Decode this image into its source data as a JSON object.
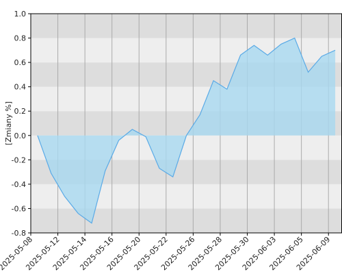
{
  "chart_data": {
    "type": "area",
    "y_label": "[Zmiany %]",
    "x": [
      0.5,
      1.5,
      2.5,
      3.5,
      4.5,
      5.5,
      6.5,
      7.5,
      8.5,
      9.5,
      10.5,
      11.5,
      12.5,
      13.5,
      14.5,
      15.5,
      16.5,
      17.5,
      18.5,
      19.5,
      20.5,
      21.5,
      22.5
    ],
    "values": [
      0,
      -0.31,
      -0.5,
      -0.64,
      -0.72,
      -0.29,
      -0.04,
      0.05,
      -0.01,
      -0.27,
      -0.34,
      0,
      0.17,
      0.45,
      0.38,
      0.66,
      0.74,
      0.66,
      0.75,
      0.8,
      0.52,
      0.65,
      0.7
    ],
    "line_color": "#5aaae6",
    "fill_color": "#a8d8f0",
    "xlim": [
      0,
      23
    ],
    "xticks": [
      {
        "value": 0,
        "label": "2025-05-08"
      },
      {
        "value": 2,
        "label": "2025-05-12"
      },
      {
        "value": 4,
        "label": "2025-05-14"
      },
      {
        "value": 6,
        "label": "2025-05-16"
      },
      {
        "value": 8,
        "label": "2025-05-20"
      },
      {
        "value": 10,
        "label": "2025-05-22"
      },
      {
        "value": 12,
        "label": "2025-05-26"
      },
      {
        "value": 14,
        "label": "2025-05-28"
      },
      {
        "value": 16,
        "label": "2025-05-30"
      },
      {
        "value": 18,
        "label": "2025-06-03"
      },
      {
        "value": 20,
        "label": "2025-06-05"
      },
      {
        "value": 22,
        "label": "2025-06-09"
      }
    ],
    "ylim": [
      -0.8,
      1.0
    ],
    "yticks": [
      -0.8,
      -0.6,
      -0.4,
      -0.2,
      {
        "value": 0,
        "label": "0.0"
      },
      0.2,
      0.4,
      0.6,
      0.8,
      {
        "value": 1.0,
        "label": "1.0"
      }
    ],
    "band_colors": [
      "#dddddd",
      "#eeeeee"
    ],
    "grid": true
  }
}
